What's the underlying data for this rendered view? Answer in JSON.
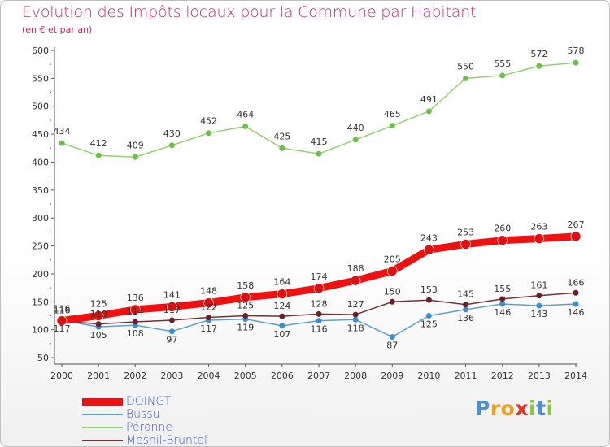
{
  "chart_data": {
    "type": "line",
    "title": "Evolution des Impôts locaux pour la Commune par Habitant",
    "subtitle": "(en € et par an)",
    "x": [
      "2000",
      "2001",
      "2002",
      "2003",
      "2004",
      "2005",
      "2006",
      "2007",
      "2008",
      "2009",
      "2010",
      "2011",
      "2012",
      "2013",
      "2014"
    ],
    "ylim": [
      50,
      600
    ],
    "yticks": [
      50,
      100,
      150,
      200,
      250,
      300,
      350,
      400,
      450,
      500,
      550,
      600
    ],
    "grid": false,
    "legend_position": "bottom-left",
    "series": [
      {
        "name": "DOINGT",
        "color": "#ee1111",
        "values": [
          116,
          125,
          136,
          141,
          148,
          158,
          164,
          174,
          188,
          205,
          243,
          253,
          260,
          263,
          267
        ]
      },
      {
        "name": "Bussu",
        "color": "#5aa0d8",
        "values": [
          117,
          105,
          108,
          97,
          117,
          119,
          107,
          116,
          118,
          87,
          125,
          136,
          146,
          143,
          146
        ]
      },
      {
        "name": "Péronne",
        "color": "#8fd46a",
        "values": [
          434,
          412,
          409,
          430,
          452,
          464,
          425,
          415,
          440,
          465,
          491,
          550,
          555,
          572,
          578
        ]
      },
      {
        "name": "Mesnil-Bruntel",
        "color": "#7a2f35",
        "values": [
          116,
          110,
          114,
          117,
          122,
          125,
          124,
          128,
          127,
          150,
          153,
          145,
          155,
          161,
          166
        ]
      }
    ],
    "data_labels": {
      "DOINGT": [
        "116",
        "125",
        "136",
        "141",
        "148",
        "158",
        "164",
        "174",
        "188",
        "205",
        "243",
        "253",
        "260",
        "263",
        "267"
      ],
      "Bussu": [
        "117",
        "105",
        "108",
        "97",
        "117",
        "119",
        "107",
        "116",
        "118",
        "87",
        "125",
        "136",
        "146",
        "143",
        "146"
      ],
      "Péronne": [
        "434",
        "412",
        "409",
        "430",
        "452",
        "464",
        "425",
        "415",
        "440",
        "465",
        "491",
        "550",
        "555",
        "572",
        "578"
      ],
      "Mesnil-Bruntel": [
        "116",
        "110",
        "114",
        "117",
        "122",
        "125",
        "124",
        "128",
        "127",
        "150",
        "153",
        "145",
        "155",
        "161",
        "166"
      ]
    }
  },
  "logo": {
    "letters": [
      {
        "ch": "P",
        "color": "#4a90d9"
      },
      {
        "ch": "r",
        "color": "#f0a020"
      },
      {
        "ch": "o",
        "color": "#f0a020"
      },
      {
        "ch": "x",
        "color": "#e03020"
      },
      {
        "ch": "i",
        "color": "#8cc63f"
      },
      {
        "ch": "t",
        "color": "#4a90d9"
      },
      {
        "ch": "i",
        "color": "#8cc63f"
      }
    ]
  }
}
